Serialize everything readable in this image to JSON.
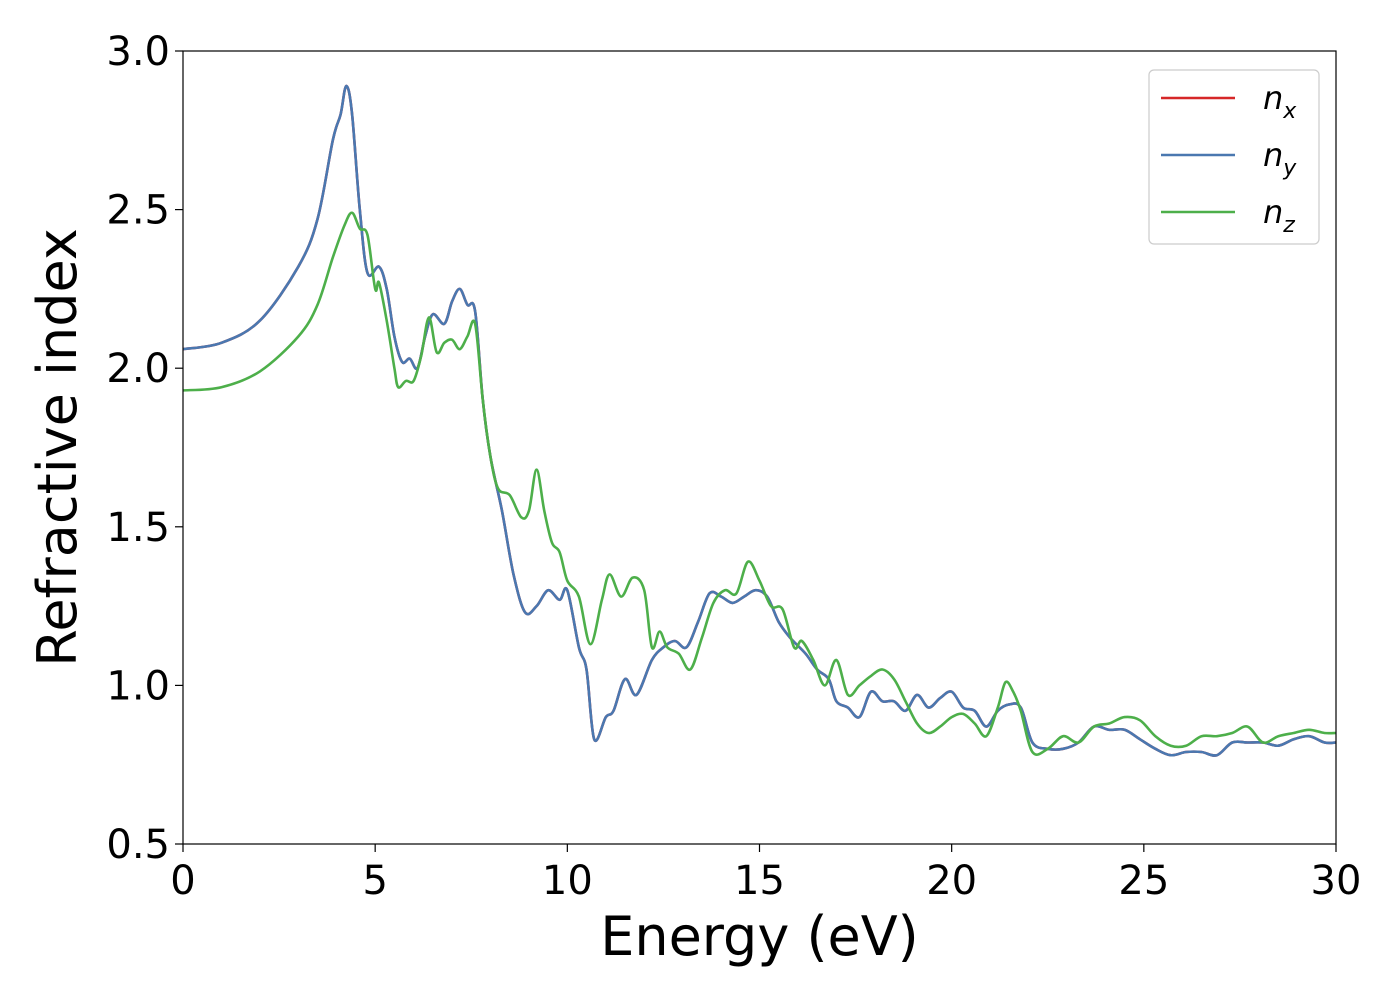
{
  "chart_data": {
    "type": "line",
    "xlabel": "Energy (eV)",
    "ylabel": "Refractive index",
    "xlim": [
      0,
      30
    ],
    "ylim": [
      0.5,
      3.0
    ],
    "xticks": [
      "0",
      "5",
      "10",
      "15",
      "20",
      "25",
      "30"
    ],
    "yticks": [
      "0.5",
      "1.0",
      "1.5",
      "2.0",
      "2.5",
      "3.0"
    ],
    "grid": false,
    "legend_position": "top-right",
    "series": [
      {
        "name": "n_x",
        "label_base": "n",
        "label_sub": "x",
        "color": "#d62728",
        "points": [
          [
            0,
            2.06
          ],
          [
            1,
            2.08
          ],
          [
            2,
            2.15
          ],
          [
            3,
            2.32
          ],
          [
            3.5,
            2.47
          ],
          [
            3.9,
            2.72
          ],
          [
            4.1,
            2.8
          ],
          [
            4.25,
            2.89
          ],
          [
            4.4,
            2.8
          ],
          [
            4.6,
            2.5
          ],
          [
            4.8,
            2.3
          ],
          [
            5.1,
            2.32
          ],
          [
            5.3,
            2.25
          ],
          [
            5.5,
            2.1
          ],
          [
            5.7,
            2.02
          ],
          [
            5.9,
            2.03
          ],
          [
            6.1,
            2.0
          ],
          [
            6.3,
            2.1
          ],
          [
            6.5,
            2.17
          ],
          [
            6.8,
            2.14
          ],
          [
            7.0,
            2.21
          ],
          [
            7.2,
            2.25
          ],
          [
            7.4,
            2.2
          ],
          [
            7.6,
            2.18
          ],
          [
            7.8,
            1.9
          ],
          [
            8.0,
            1.72
          ],
          [
            8.3,
            1.55
          ],
          [
            8.6,
            1.35
          ],
          [
            8.9,
            1.23
          ],
          [
            9.2,
            1.25
          ],
          [
            9.5,
            1.3
          ],
          [
            9.8,
            1.27
          ],
          [
            10.0,
            1.3
          ],
          [
            10.3,
            1.12
          ],
          [
            10.5,
            1.05
          ],
          [
            10.7,
            0.83
          ],
          [
            11.0,
            0.9
          ],
          [
            11.2,
            0.92
          ],
          [
            11.5,
            1.02
          ],
          [
            11.8,
            0.97
          ],
          [
            12.2,
            1.08
          ],
          [
            12.5,
            1.12
          ],
          [
            12.8,
            1.14
          ],
          [
            13.1,
            1.12
          ],
          [
            13.4,
            1.2
          ],
          [
            13.7,
            1.29
          ],
          [
            14.0,
            1.28
          ],
          [
            14.3,
            1.26
          ],
          [
            14.6,
            1.28
          ],
          [
            14.9,
            1.3
          ],
          [
            15.2,
            1.28
          ],
          [
            15.5,
            1.2
          ],
          [
            15.8,
            1.15
          ],
          [
            16.2,
            1.1
          ],
          [
            16.5,
            1.05
          ],
          [
            16.8,
            1.02
          ],
          [
            17.0,
            0.95
          ],
          [
            17.3,
            0.93
          ],
          [
            17.6,
            0.9
          ],
          [
            17.9,
            0.98
          ],
          [
            18.2,
            0.95
          ],
          [
            18.5,
            0.95
          ],
          [
            18.8,
            0.92
          ],
          [
            19.1,
            0.97
          ],
          [
            19.4,
            0.93
          ],
          [
            19.7,
            0.96
          ],
          [
            20.0,
            0.98
          ],
          [
            20.3,
            0.93
          ],
          [
            20.6,
            0.92
          ],
          [
            20.9,
            0.87
          ],
          [
            21.2,
            0.92
          ],
          [
            21.5,
            0.94
          ],
          [
            21.8,
            0.93
          ],
          [
            22.1,
            0.82
          ],
          [
            22.5,
            0.8
          ],
          [
            22.9,
            0.8
          ],
          [
            23.3,
            0.82
          ],
          [
            23.7,
            0.87
          ],
          [
            24.1,
            0.86
          ],
          [
            24.5,
            0.86
          ],
          [
            24.9,
            0.83
          ],
          [
            25.3,
            0.8
          ],
          [
            25.7,
            0.78
          ],
          [
            26.1,
            0.79
          ],
          [
            26.5,
            0.79
          ],
          [
            26.9,
            0.78
          ],
          [
            27.3,
            0.82
          ],
          [
            27.7,
            0.82
          ],
          [
            28.1,
            0.82
          ],
          [
            28.5,
            0.81
          ],
          [
            28.9,
            0.83
          ],
          [
            29.3,
            0.84
          ],
          [
            29.7,
            0.82
          ],
          [
            30.0,
            0.82
          ]
        ]
      },
      {
        "name": "n_y",
        "label_base": "n",
        "label_sub": "y",
        "color": "#4a78b0",
        "points": [
          [
            0,
            2.06
          ],
          [
            1,
            2.08
          ],
          [
            2,
            2.15
          ],
          [
            3,
            2.32
          ],
          [
            3.5,
            2.47
          ],
          [
            3.9,
            2.72
          ],
          [
            4.1,
            2.8
          ],
          [
            4.25,
            2.89
          ],
          [
            4.4,
            2.8
          ],
          [
            4.6,
            2.5
          ],
          [
            4.8,
            2.3
          ],
          [
            5.1,
            2.32
          ],
          [
            5.3,
            2.25
          ],
          [
            5.5,
            2.1
          ],
          [
            5.7,
            2.02
          ],
          [
            5.9,
            2.03
          ],
          [
            6.1,
            2.0
          ],
          [
            6.3,
            2.1
          ],
          [
            6.5,
            2.17
          ],
          [
            6.8,
            2.14
          ],
          [
            7.0,
            2.21
          ],
          [
            7.2,
            2.25
          ],
          [
            7.4,
            2.2
          ],
          [
            7.6,
            2.18
          ],
          [
            7.8,
            1.9
          ],
          [
            8.0,
            1.72
          ],
          [
            8.3,
            1.55
          ],
          [
            8.6,
            1.35
          ],
          [
            8.9,
            1.23
          ],
          [
            9.2,
            1.25
          ],
          [
            9.5,
            1.3
          ],
          [
            9.8,
            1.27
          ],
          [
            10.0,
            1.3
          ],
          [
            10.3,
            1.12
          ],
          [
            10.5,
            1.05
          ],
          [
            10.7,
            0.83
          ],
          [
            11.0,
            0.9
          ],
          [
            11.2,
            0.92
          ],
          [
            11.5,
            1.02
          ],
          [
            11.8,
            0.97
          ],
          [
            12.2,
            1.08
          ],
          [
            12.5,
            1.12
          ],
          [
            12.8,
            1.14
          ],
          [
            13.1,
            1.12
          ],
          [
            13.4,
            1.2
          ],
          [
            13.7,
            1.29
          ],
          [
            14.0,
            1.28
          ],
          [
            14.3,
            1.26
          ],
          [
            14.6,
            1.28
          ],
          [
            14.9,
            1.3
          ],
          [
            15.2,
            1.28
          ],
          [
            15.5,
            1.2
          ],
          [
            15.8,
            1.15
          ],
          [
            16.2,
            1.1
          ],
          [
            16.5,
            1.05
          ],
          [
            16.8,
            1.02
          ],
          [
            17.0,
            0.95
          ],
          [
            17.3,
            0.93
          ],
          [
            17.6,
            0.9
          ],
          [
            17.9,
            0.98
          ],
          [
            18.2,
            0.95
          ],
          [
            18.5,
            0.95
          ],
          [
            18.8,
            0.92
          ],
          [
            19.1,
            0.97
          ],
          [
            19.4,
            0.93
          ],
          [
            19.7,
            0.96
          ],
          [
            20.0,
            0.98
          ],
          [
            20.3,
            0.93
          ],
          [
            20.6,
            0.92
          ],
          [
            20.9,
            0.87
          ],
          [
            21.2,
            0.92
          ],
          [
            21.5,
            0.94
          ],
          [
            21.8,
            0.93
          ],
          [
            22.1,
            0.82
          ],
          [
            22.5,
            0.8
          ],
          [
            22.9,
            0.8
          ],
          [
            23.3,
            0.82
          ],
          [
            23.7,
            0.87
          ],
          [
            24.1,
            0.86
          ],
          [
            24.5,
            0.86
          ],
          [
            24.9,
            0.83
          ],
          [
            25.3,
            0.8
          ],
          [
            25.7,
            0.78
          ],
          [
            26.1,
            0.79
          ],
          [
            26.5,
            0.79
          ],
          [
            26.9,
            0.78
          ],
          [
            27.3,
            0.82
          ],
          [
            27.7,
            0.82
          ],
          [
            28.1,
            0.82
          ],
          [
            28.5,
            0.81
          ],
          [
            28.9,
            0.83
          ],
          [
            29.3,
            0.84
          ],
          [
            29.7,
            0.82
          ],
          [
            30.0,
            0.82
          ]
        ]
      },
      {
        "name": "n_z",
        "label_base": "n",
        "label_sub": "z",
        "color": "#4daf4a",
        "points": [
          [
            0,
            1.93
          ],
          [
            1,
            1.94
          ],
          [
            2,
            1.99
          ],
          [
            3,
            2.1
          ],
          [
            3.5,
            2.2
          ],
          [
            3.9,
            2.35
          ],
          [
            4.2,
            2.45
          ],
          [
            4.4,
            2.49
          ],
          [
            4.6,
            2.44
          ],
          [
            4.8,
            2.42
          ],
          [
            5.0,
            2.25
          ],
          [
            5.1,
            2.27
          ],
          [
            5.3,
            2.15
          ],
          [
            5.5,
            2.0
          ],
          [
            5.6,
            1.94
          ],
          [
            5.8,
            1.96
          ],
          [
            6.0,
            1.96
          ],
          [
            6.2,
            2.04
          ],
          [
            6.4,
            2.16
          ],
          [
            6.6,
            2.05
          ],
          [
            6.8,
            2.08
          ],
          [
            7.0,
            2.09
          ],
          [
            7.2,
            2.06
          ],
          [
            7.4,
            2.1
          ],
          [
            7.6,
            2.14
          ],
          [
            7.8,
            1.9
          ],
          [
            8.0,
            1.72
          ],
          [
            8.2,
            1.62
          ],
          [
            8.5,
            1.6
          ],
          [
            8.8,
            1.53
          ],
          [
            9.0,
            1.55
          ],
          [
            9.2,
            1.68
          ],
          [
            9.4,
            1.55
          ],
          [
            9.6,
            1.45
          ],
          [
            9.8,
            1.42
          ],
          [
            10.0,
            1.33
          ],
          [
            10.3,
            1.28
          ],
          [
            10.6,
            1.13
          ],
          [
            10.9,
            1.27
          ],
          [
            11.1,
            1.35
          ],
          [
            11.4,
            1.28
          ],
          [
            11.7,
            1.34
          ],
          [
            12.0,
            1.3
          ],
          [
            12.2,
            1.12
          ],
          [
            12.4,
            1.17
          ],
          [
            12.6,
            1.12
          ],
          [
            12.9,
            1.1
          ],
          [
            13.2,
            1.05
          ],
          [
            13.5,
            1.15
          ],
          [
            13.8,
            1.26
          ],
          [
            14.1,
            1.3
          ],
          [
            14.4,
            1.29
          ],
          [
            14.7,
            1.39
          ],
          [
            15.0,
            1.33
          ],
          [
            15.3,
            1.25
          ],
          [
            15.6,
            1.24
          ],
          [
            15.9,
            1.12
          ],
          [
            16.1,
            1.14
          ],
          [
            16.4,
            1.08
          ],
          [
            16.7,
            1.0
          ],
          [
            17.0,
            1.08
          ],
          [
            17.3,
            0.97
          ],
          [
            17.6,
            1.0
          ],
          [
            17.9,
            1.03
          ],
          [
            18.2,
            1.05
          ],
          [
            18.5,
            1.02
          ],
          [
            18.8,
            0.95
          ],
          [
            19.1,
            0.88
          ],
          [
            19.4,
            0.85
          ],
          [
            19.7,
            0.87
          ],
          [
            20.0,
            0.9
          ],
          [
            20.3,
            0.91
          ],
          [
            20.6,
            0.88
          ],
          [
            20.9,
            0.84
          ],
          [
            21.2,
            0.93
          ],
          [
            21.4,
            1.01
          ],
          [
            21.6,
            0.98
          ],
          [
            21.8,
            0.92
          ],
          [
            22.1,
            0.79
          ],
          [
            22.5,
            0.8
          ],
          [
            22.9,
            0.84
          ],
          [
            23.3,
            0.82
          ],
          [
            23.7,
            0.87
          ],
          [
            24.1,
            0.88
          ],
          [
            24.5,
            0.9
          ],
          [
            24.9,
            0.89
          ],
          [
            25.3,
            0.84
          ],
          [
            25.7,
            0.81
          ],
          [
            26.1,
            0.81
          ],
          [
            26.5,
            0.84
          ],
          [
            26.9,
            0.84
          ],
          [
            27.3,
            0.85
          ],
          [
            27.7,
            0.87
          ],
          [
            28.1,
            0.82
          ],
          [
            28.5,
            0.84
          ],
          [
            28.9,
            0.85
          ],
          [
            29.3,
            0.86
          ],
          [
            29.7,
            0.85
          ],
          [
            30.0,
            0.85
          ]
        ]
      }
    ]
  }
}
